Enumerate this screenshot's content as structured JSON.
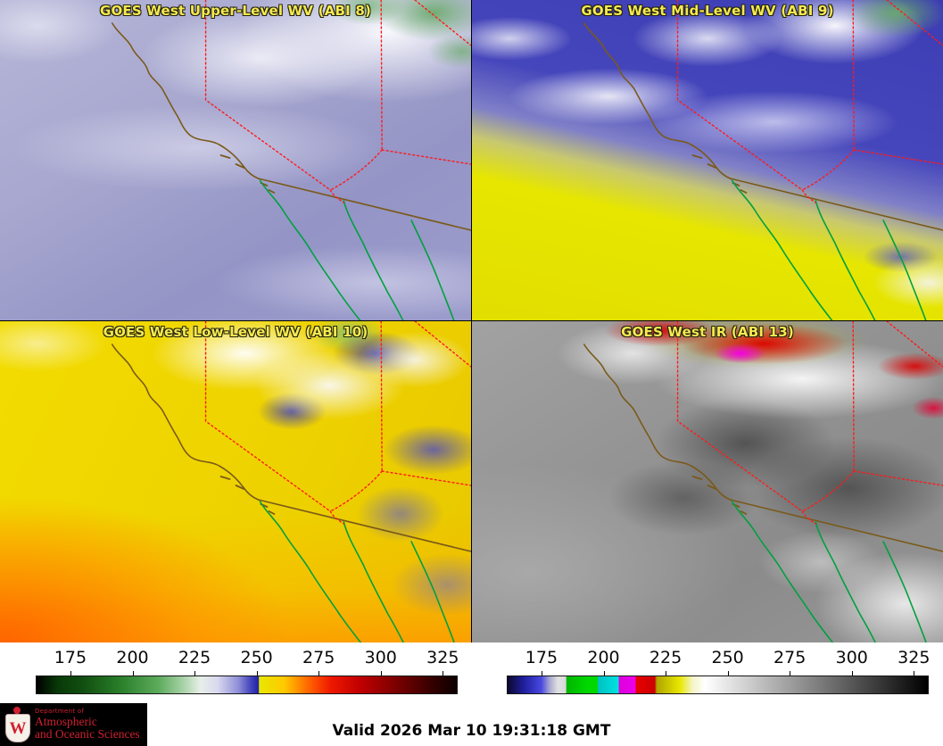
{
  "panels": [
    {
      "id": "abi8",
      "title": "GOES West Upper-Level WV (ABI 8)"
    },
    {
      "id": "abi9",
      "title": "GOES West Mid-Level WV (ABI 9)"
    },
    {
      "id": "abi10",
      "title": "GOES West Low-Level WV (ABI 10)"
    },
    {
      "id": "abi13",
      "title": "GOES West IR (ABI 13)"
    }
  ],
  "colorbars": [
    {
      "id": "wv",
      "min": 161,
      "max": 331,
      "ticks": [
        175,
        200,
        225,
        250,
        275,
        300,
        325
      ],
      "stops": [
        [
          0,
          "#000000"
        ],
        [
          5,
          "#083908"
        ],
        [
          11,
          "#114e11"
        ],
        [
          20,
          "#2a7f2a"
        ],
        [
          29,
          "#5cab5c"
        ],
        [
          35,
          "#a9d3a9"
        ],
        [
          39,
          "#e8efe8"
        ],
        [
          43,
          "#d9d9ef"
        ],
        [
          48,
          "#8f8fd8"
        ],
        [
          51,
          "#4343bc"
        ],
        [
          52.8,
          "#2222a8"
        ],
        [
          53,
          "#e8e800"
        ],
        [
          59,
          "#ffc800"
        ],
        [
          65,
          "#ff6000"
        ],
        [
          70,
          "#ef1800"
        ],
        [
          77,
          "#c00000"
        ],
        [
          87,
          "#700000"
        ],
        [
          95,
          "#2e0000"
        ],
        [
          100,
          "#0d0000"
        ]
      ]
    },
    {
      "id": "ir",
      "min": 161,
      "max": 331,
      "ticks": [
        175,
        200,
        225,
        250,
        275,
        300,
        325
      ],
      "stops": [
        [
          0,
          "#0c0830"
        ],
        [
          4,
          "#2020a0"
        ],
        [
          8,
          "#4848e0"
        ],
        [
          10,
          "#a8a8d0"
        ],
        [
          12,
          "#e2e2e2"
        ],
        [
          13.9,
          "#d8d8d8"
        ],
        [
          14,
          "#00b400"
        ],
        [
          19,
          "#00d800"
        ],
        [
          21.4,
          "#00d800"
        ],
        [
          21.5,
          "#00c0c0"
        ],
        [
          26,
          "#00e0e0"
        ],
        [
          26.4,
          "#00e0e0"
        ],
        [
          26.5,
          "#dc00dc"
        ],
        [
          30.4,
          "#ec00ec"
        ],
        [
          30.5,
          "#e80000"
        ],
        [
          35,
          "#cc0000"
        ],
        [
          35.5,
          "#b0a400"
        ],
        [
          41,
          "#e8e800"
        ],
        [
          44,
          "#f4f4c8"
        ],
        [
          47,
          "#ffffff"
        ],
        [
          100,
          "#000000"
        ]
      ]
    }
  ],
  "footer": {
    "valid_label": "Valid 2026 Mar 10 19:31:18 GMT"
  },
  "logo": {
    "crest_letter": "W",
    "dept_small": "Department of",
    "line1": "Atmospheric",
    "line2": "and Oceanic Sciences"
  },
  "theme": {
    "title_color": "#f5e94f",
    "brand": "#d22030",
    "coast": "#7a5a1a",
    "mexcoast": "#00a040",
    "stateborder": "#ff1a1a"
  }
}
